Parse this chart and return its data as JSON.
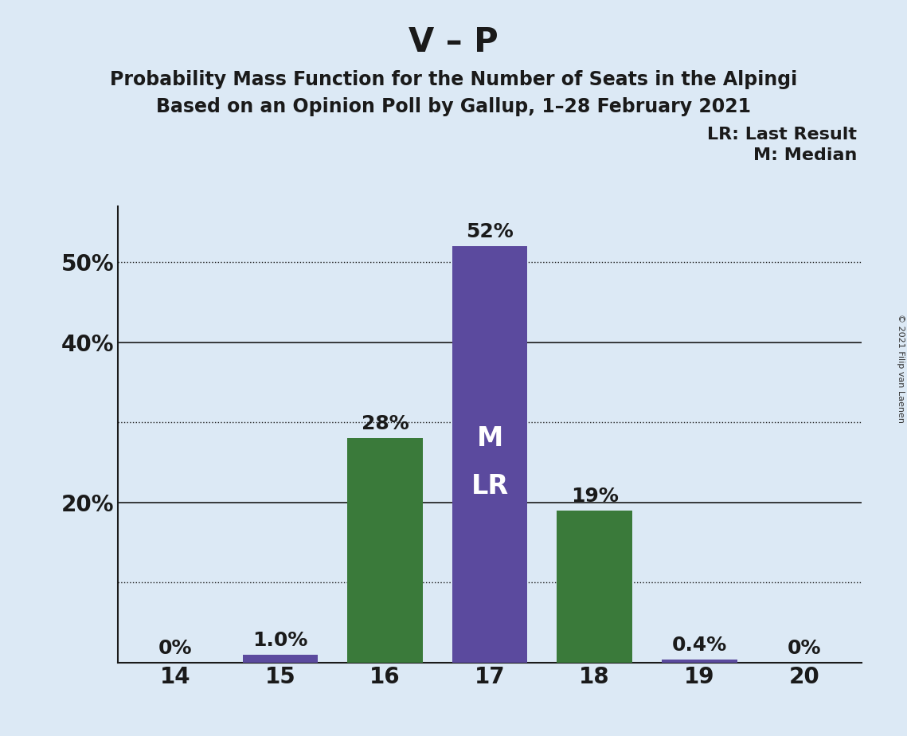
{
  "title": "V – P",
  "subtitle1": "Probability Mass Function for the Number of Seats in the Alpingi",
  "subtitle2": "Based on an Opinion Poll by Gallup, 1–28 February 2021",
  "copyright": "© 2021 Filip van Laenen",
  "categories": [
    14,
    15,
    16,
    17,
    18,
    19,
    20
  ],
  "values": [
    0.0,
    1.0,
    28.0,
    52.0,
    19.0,
    0.4,
    0.0
  ],
  "bar_colors": [
    "#5b4a9e",
    "#5b4a9e",
    "#3a7a3a",
    "#5b4a9e",
    "#3a7a3a",
    "#5b4a9e",
    "#5b4a9e"
  ],
  "bar_labels": [
    "0%",
    "1.0%",
    "28%",
    "52%",
    "19%",
    "0.4%",
    "0%"
  ],
  "median_bar_idx": 3,
  "median_label": "M",
  "lr_label": "LR",
  "legend_lr": "LR: Last Result",
  "legend_m": "M: Median",
  "background_color": "#dce9f5",
  "ylim": [
    0,
    57
  ],
  "solid_gridlines": [
    20,
    40
  ],
  "dotted_gridlines": [
    10,
    30,
    50
  ],
  "ytick_positions": [
    20,
    40
  ],
  "ytick_labels_even": [
    "20%",
    "40%"
  ],
  "ytick_positions_odd": [
    10,
    30,
    50
  ],
  "ytick_labels_odd": [
    "",
    "",
    "50%"
  ],
  "all_yticks": [
    10,
    20,
    30,
    40,
    50
  ],
  "all_ytick_labels": [
    "",
    "20%",
    "",
    "40%",
    "50%"
  ],
  "grid_color_dark": "#1a1a1a",
  "text_color": "#1a1a1a",
  "title_fontsize": 30,
  "subtitle_fontsize": 17,
  "axis_fontsize": 20,
  "bar_label_fontsize": 18,
  "inner_label_fontsize": 24,
  "legend_fontsize": 16,
  "copyright_fontsize": 8
}
